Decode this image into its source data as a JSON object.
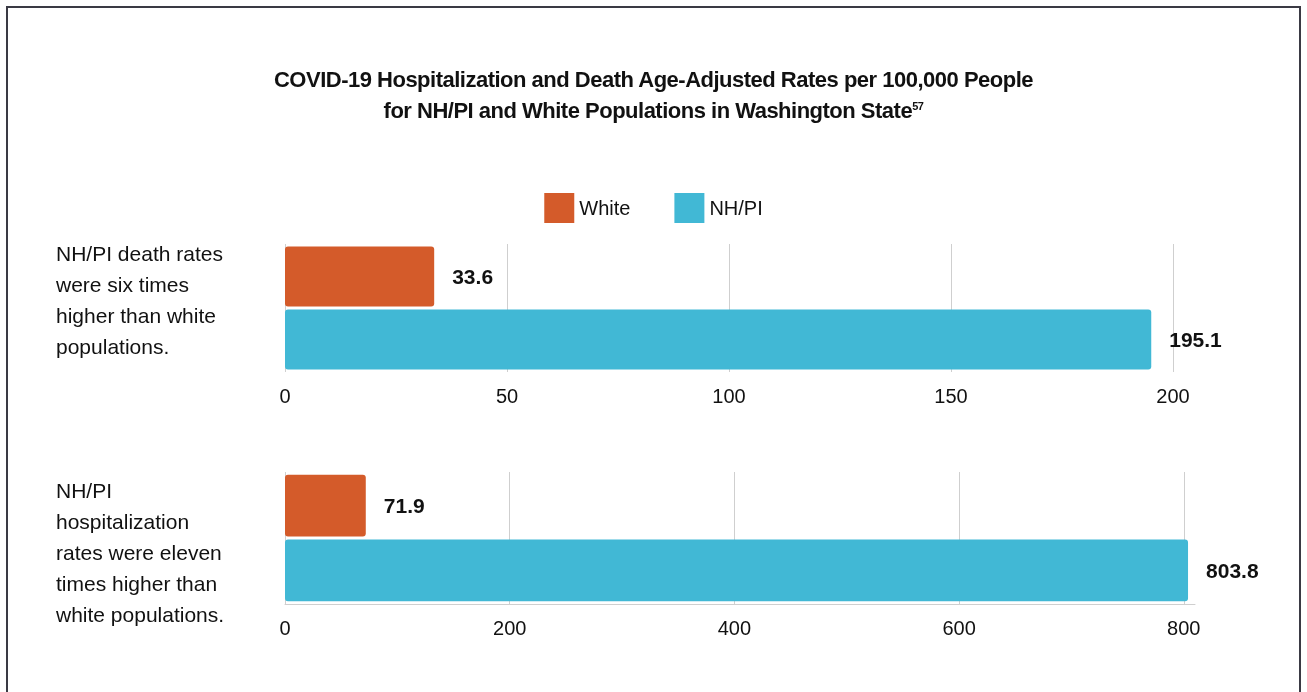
{
  "chart_data": [
    {
      "type": "bar",
      "orientation": "horizontal",
      "title": "COVID-19 Hospitalization and Death Age-Adjusted Rates per 100,000 People for NH/PI and White Populations in Washington State$^{57}$",
      "ylabel": "NH/PI death rates were six times higher than white populations.",
      "categories": [
        null
      ],
      "series": [
        {
          "name": "White",
          "color": "#d45b2a",
          "values": [
            33.6
          ]
        },
        {
          "name": "NH/PI",
          "color": "#41b8d5",
          "values": [
            195.1
          ]
        }
      ],
      "xlim": [
        0,
        200
      ],
      "xticks": [
        0,
        50,
        100,
        150,
        200
      ],
      "grid": "x",
      "legend": "top",
      "data_labels": true
    },
    {
      "type": "bar",
      "orientation": "horizontal",
      "ylabel": "NH/PI hospitalization rates were eleven times higher than white populations.",
      "categories": [
        null
      ],
      "series": [
        {
          "color": "#d45b2a",
          "values": [
            71.9
          ]
        },
        {
          "color": "#41b8d5",
          "values": [
            803.8
          ]
        }
      ],
      "xlim": [
        0,
        810
      ],
      "xticks": [
        0,
        200,
        400,
        600,
        800
      ],
      "grid": "x",
      "data_labels": true
    }
  ]
}
